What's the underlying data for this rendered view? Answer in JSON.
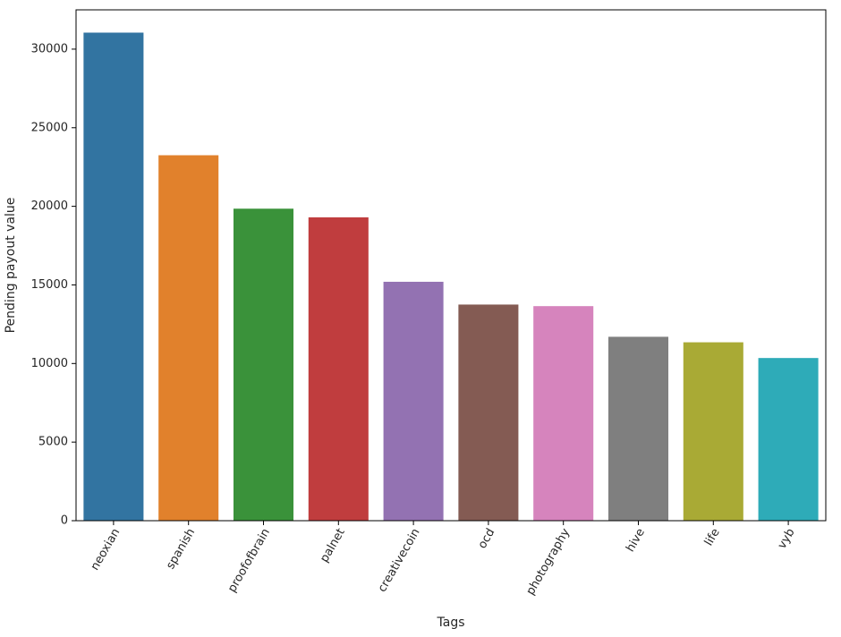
{
  "chart_data": {
    "type": "bar",
    "title": "",
    "xlabel": "Tags",
    "ylabel": "Pending payout value",
    "categories": [
      "neoxian",
      "spanish",
      "proofofbrain",
      "palnet",
      "creativecoin",
      "ocd",
      "photography",
      "hive",
      "life",
      "vyb"
    ],
    "values": [
      31050,
      23250,
      19850,
      19300,
      15200,
      13750,
      13650,
      11700,
      11350,
      10350
    ],
    "colors": [
      "#3274a1",
      "#e1812c",
      "#3a923a",
      "#c03d3e",
      "#9372b2",
      "#845b53",
      "#d684bd",
      "#7f7f7f",
      "#a9aa35",
      "#2eabb8"
    ],
    "ylim": [
      0,
      32500
    ],
    "yticks": [
      0,
      5000,
      10000,
      15000,
      20000,
      25000,
      30000
    ],
    "grid": false,
    "legend": "none"
  }
}
